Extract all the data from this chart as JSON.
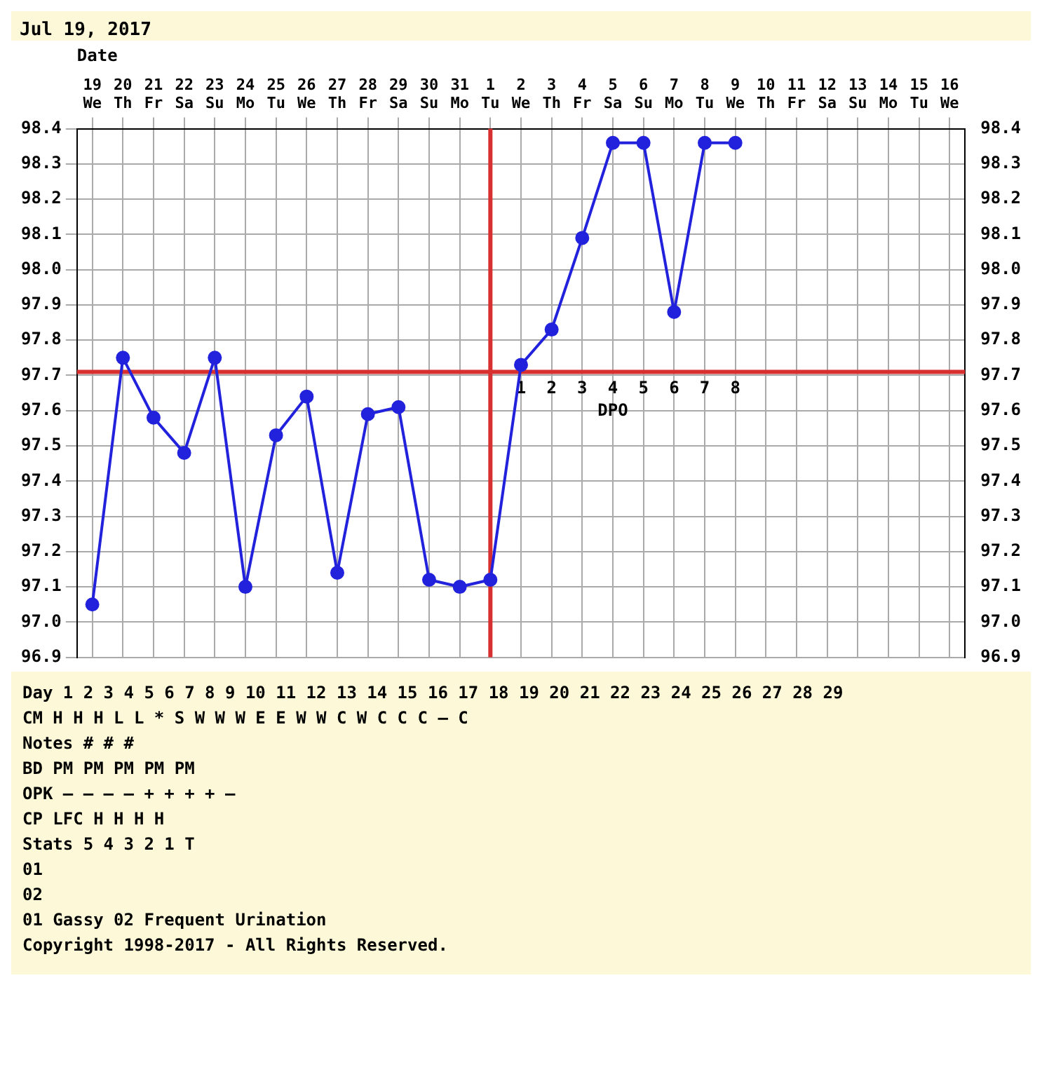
{
  "chart_data": {
    "type": "line",
    "title": "Jul 19, 2017",
    "xlabel": "Date",
    "categories": [
      "19 We",
      "20 Th",
      "21 Fr",
      "22 Sa",
      "23 Su",
      "24 Mo",
      "25 Tu",
      "26 We",
      "27 Th",
      "28 Fr",
      "29 Sa",
      "30 Su",
      "31 Mo",
      "1 Tu",
      "2 We",
      "3 Th",
      "4 Fr",
      "5 Sa",
      "6 Su",
      "7 Mo",
      "8 Tu",
      "9 We",
      "10 Th",
      "11 Fr",
      "12 Sa",
      "13 Su",
      "14 Mo",
      "15 Tu",
      "16 We"
    ],
    "series": [
      {
        "color": "#2222dd",
        "values": [
          97.05,
          97.75,
          97.58,
          97.48,
          97.75,
          97.1,
          97.53,
          97.64,
          97.14,
          97.59,
          97.61,
          97.12,
          97.1,
          97.12,
          97.73,
          97.83,
          98.09,
          98.36,
          98.36,
          97.88,
          98.36,
          98.36,
          null,
          null,
          null,
          null,
          null,
          null,
          null
        ]
      }
    ],
    "ylim": [
      96.9,
      98.4
    ],
    "yticks": [
      96.9,
      {
        "value": 97,
        "label": "97.0"
      },
      97.1,
      97.2,
      97.3,
      97.4,
      97.5,
      97.6,
      97.7,
      97.8,
      97.9,
      {
        "value": 98,
        "label": "98.0"
      },
      98.1,
      98.2,
      98.3,
      98.4
    ],
    "y2lim": [
      96.9,
      98.4
    ],
    "y2ticks": [
      96.9,
      {
        "value": 97,
        "label": "97.0"
      },
      97.1,
      97.2,
      97.3,
      97.4,
      97.5,
      97.6,
      97.7,
      97.8,
      97.9,
      {
        "value": 98,
        "label": "98.0"
      },
      98.1,
      98.2,
      98.3,
      98.4
    ],
    "grid": true,
    "legend": false,
    "marker": "circle",
    "line_style": "solid",
    "ref_lines": [
      {
        "axis": "y",
        "value": 97.71,
        "color": "#d83030"
      },
      {
        "axis": "x",
        "value": "1 Tu",
        "color": "#d83030"
      }
    ],
    "annotations": [
      {
        "text": "1",
        "x": "2 We",
        "y": 97.71
      },
      {
        "text": "2",
        "x": "3 Th",
        "y": 97.71
      },
      {
        "text": "3",
        "x": "4 Fr",
        "y": 97.71
      },
      {
        "text": "4",
        "x": "5 Sa",
        "y": 97.71
      },
      {
        "text": "5",
        "x": "6 Su",
        "y": 97.71
      },
      {
        "text": "6",
        "x": "7 Mo",
        "y": 97.71
      },
      {
        "text": "7",
        "x": "8 Tu",
        "y": 97.71
      },
      {
        "text": "8",
        "x": "9 We",
        "y": 97.71
      },
      {
        "text": "DPO",
        "x": "5 Sa",
        "y": 97.71
      },
      "Day 1 2 3 4 5 6 7 8 9 10 11 12 13 14 15 16 17 18 19 20 21 22 23 24 25 26 27 28 29",
      "CM H H H L L * S W W W E E W W C W C C C – C",
      "Notes # # #",
      "BD PM PM PM PM PM",
      "OPK – – – – + + + + –",
      "CP LFC H H H H",
      "Stats 5 4 3 2 1 T",
      "01",
      "02",
      "01 Gassy 02 Frequent Urination",
      "Copyright 1998-2017 - All Rights Reserved."
    ]
  }
}
